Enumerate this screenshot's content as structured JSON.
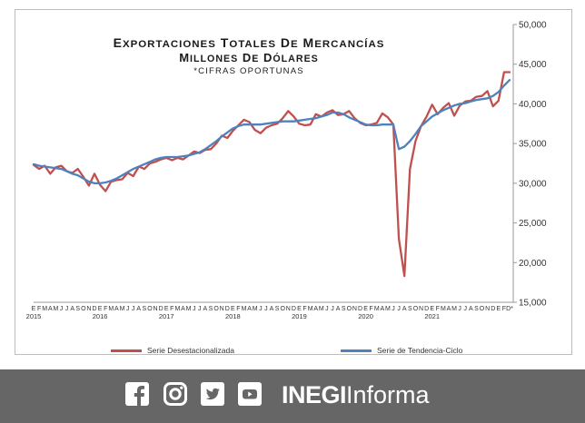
{
  "chart_data": {
    "type": "line",
    "title_lines": [
      "Exportaciones totales de mercancías",
      "Millones de dólares",
      "*cifras oportunas"
    ],
    "xlabel": "",
    "ylabel": "",
    "ylim": [
      15000,
      50000
    ],
    "y_ticks": [
      "15,000",
      "20,000",
      "25,000",
      "30,000",
      "35,000",
      "40,000",
      "45,000",
      "50,000"
    ],
    "y_axis_side": "right",
    "month_letters": [
      "E",
      "F",
      "M",
      "A",
      "M",
      "J",
      "J",
      "A",
      "S",
      "O",
      "N",
      "D"
    ],
    "last_month_label": "D*",
    "years": [
      "2015",
      "2016",
      "2017",
      "2018",
      "2019",
      "2020",
      "2021"
    ],
    "grid": false,
    "legend_position": "bottom",
    "series": [
      {
        "name": "Serie Desestacionalizada",
        "color": "#c0504d",
        "values": [
          32300,
          31800,
          32200,
          31200,
          32000,
          32200,
          31500,
          31300,
          31800,
          30800,
          29700,
          31200,
          29800,
          29000,
          30200,
          30400,
          30500,
          31300,
          30900,
          32100,
          31800,
          32500,
          32700,
          33000,
          33200,
          32900,
          33200,
          33000,
          33500,
          34000,
          33800,
          34200,
          34300,
          35000,
          36000,
          35700,
          36600,
          37300,
          38000,
          37700,
          36700,
          36300,
          37000,
          37300,
          37500,
          38200,
          39100,
          38400,
          37500,
          37300,
          37400,
          38700,
          38400,
          38900,
          39200,
          38600,
          38700,
          39100,
          38200,
          37600,
          37300,
          37400,
          37600,
          38800,
          38300,
          37400,
          23000,
          18300,
          31800,
          35300,
          37200,
          38400,
          39900,
          38700,
          39500,
          40100,
          38500,
          39800,
          40300,
          40400,
          40900,
          41000,
          41600,
          39700,
          40400,
          44000,
          44000
        ]
      },
      {
        "name": "Serie de Tendencia-Ciclo",
        "color": "#4f81bd",
        "values": [
          32400,
          32200,
          32100,
          32000,
          31900,
          31800,
          31500,
          31200,
          31000,
          30600,
          30200,
          30000,
          30000,
          30100,
          30300,
          30600,
          31000,
          31400,
          31800,
          32100,
          32400,
          32700,
          33000,
          33200,
          33300,
          33300,
          33300,
          33400,
          33500,
          33700,
          33900,
          34300,
          34800,
          35300,
          35900,
          36400,
          36900,
          37200,
          37400,
          37400,
          37400,
          37400,
          37500,
          37600,
          37700,
          37800,
          37800,
          37800,
          37900,
          38000,
          38100,
          38200,
          38400,
          38600,
          38900,
          38900,
          38700,
          38300,
          38000,
          37700,
          37400,
          37300,
          37300,
          37400,
          37400,
          37400,
          34300,
          34600,
          35300,
          36200,
          37200,
          37800,
          38400,
          38800,
          39200,
          39500,
          39800,
          40000,
          40100,
          40300,
          40500,
          40600,
          40700,
          41000,
          41500,
          42300,
          43000
        ]
      }
    ]
  },
  "legend": {
    "series1_label": "Serie Desestacionalizada",
    "series2_label": "Serie de Tendencia-Ciclo"
  },
  "footer": {
    "background": "#666666",
    "brand_bold": "INEGI",
    "brand_light": "Informa",
    "icons": [
      "facebook-icon",
      "instagram-icon",
      "twitter-icon",
      "youtube-icon"
    ]
  }
}
